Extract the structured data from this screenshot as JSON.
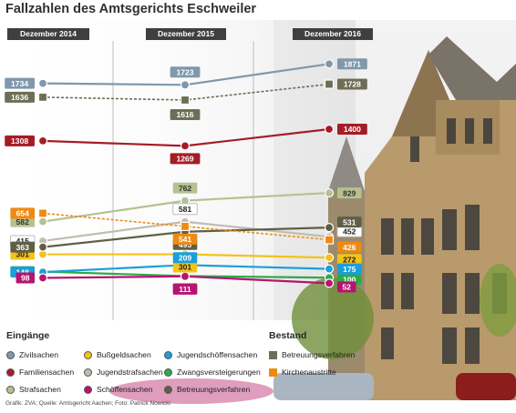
{
  "title": "Fallzahlen des Amtsgerichts Eschweiler",
  "source": "Grafik: ZVA; Quelle: Amtsgericht Aachen; Foto: Patrick Nowicki",
  "colors": {
    "background_panel": "#dcdcdc",
    "header_bar": "#3f3f3f"
  },
  "chart_data": {
    "type": "line",
    "categories": [
      "Dezember 2014",
      "Dezember 2015",
      "Dezember 2016"
    ],
    "series": [
      {
        "name": "Zivilsachen",
        "group": "Eingänge",
        "marker": "circle",
        "color": "#7f98ab",
        "values": [
          1734,
          1723,
          1871
        ]
      },
      {
        "name": "Familiensachen",
        "group": "Eingänge",
        "marker": "circle",
        "color": "#a41d26",
        "values": [
          1308,
          1269,
          1400
        ]
      },
      {
        "name": "Strafsachen",
        "group": "Eingänge",
        "marker": "circle",
        "color": "#b5c290",
        "values": [
          582,
          762,
          829
        ]
      },
      {
        "name": "Bußgeldsachen",
        "group": "Eingänge",
        "marker": "circle",
        "color": "#f2c318",
        "values": [
          301,
          301,
          272
        ]
      },
      {
        "name": "Jugendstrafsachen",
        "group": "Eingänge",
        "marker": "circle",
        "color": "#c2bcb0",
        "values": [
          415,
          581,
          452
        ]
      },
      {
        "name": "Zwangsversteigerungen",
        "group": "Eingänge",
        "marker": "circle",
        "color": "#2fa84a",
        "values": [
          152,
          114,
          100
        ]
      },
      {
        "name": "Jugendschöffensachen",
        "group": "Eingänge",
        "marker": "circle",
        "color": "#1a9fd9",
        "values": [
          148,
          209,
          175
        ]
      },
      {
        "name": "Schöffensachen",
        "group": "Eingänge",
        "marker": "circle",
        "color": "#b5146f",
        "values": [
          98,
          111,
          52
        ]
      },
      {
        "name": "Betreuungsverfahren",
        "group": "Eingänge",
        "marker": "circle",
        "color": "#5f5f44",
        "values": [
          363,
          495,
          531
        ]
      },
      {
        "name": "Betreuungsverfahren",
        "group": "Bestand",
        "marker": "square",
        "color": "#6e6e56",
        "values": [
          1636,
          1616,
          1728
        ]
      },
      {
        "name": "Kirchenaustritte",
        "group": "Bestand",
        "marker": "square",
        "color": "#ee8a12",
        "values": [
          654,
          541,
          426
        ]
      }
    ],
    "legend": {
      "eingaenge_title": "Eingänge",
      "bestand_title": "Bestand",
      "placement": "bottom"
    },
    "grid": false
  }
}
